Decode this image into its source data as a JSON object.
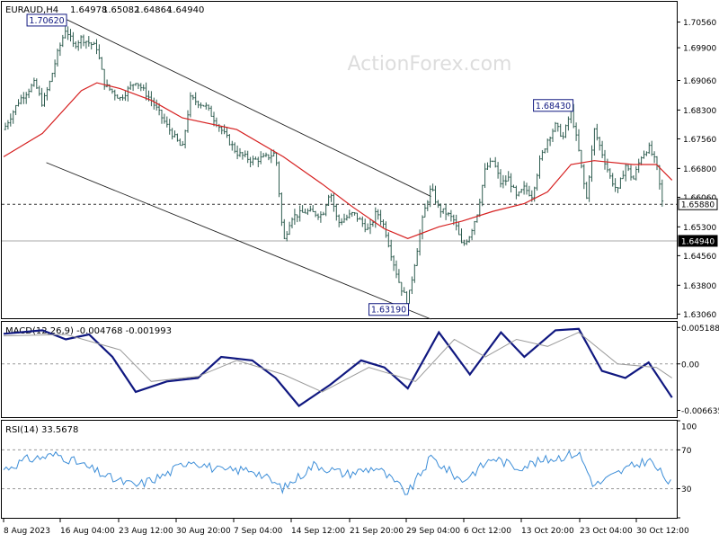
{
  "watermark": "ActionForex.com",
  "colors": {
    "candle": "#2f5d50",
    "ma": "#d62020",
    "macd": "#101880",
    "signal": "#9a9a9a",
    "rsi": "#3d8ed8",
    "label_border": "#101880",
    "grid": "#888888"
  },
  "chart_data": [
    {
      "type": "candlestick",
      "title": "EURAUD,H4",
      "ohlc_header": {
        "open": "1.64978",
        "high": "1.65082",
        "low": "1.64864",
        "close": "1.64940"
      },
      "ylim": [
        1.6293,
        1.7108
      ],
      "y_ticks": [
        "1.70560",
        "1.69900",
        "1.69060",
        "1.68300",
        "1.67560",
        "1.66800",
        "1.66060",
        "1.65300",
        "1.64560",
        "1.63800",
        "1.63060"
      ],
      "price_labels": {
        "current": "1.64940",
        "level": "1.65880"
      },
      "annotations": [
        {
          "text": "1.70620",
          "value": 1.7062,
          "date": "2023-08-16 08:00"
        },
        {
          "text": "1.68430",
          "value": 1.6843,
          "date": "2023-10-20 12:00"
        },
        {
          "text": "1.63190",
          "value": 1.6319,
          "date": "2023-09-29 08:00"
        }
      ],
      "indicator": "moving average (red line)",
      "channel_lines": [
        [
          {
            "date": "2023-08-16 04:00",
            "value": 1.7062
          },
          {
            "date": "2023-10-02 00:00",
            "value": 1.6608
          }
        ],
        [
          {
            "date": "2023-08-13 12:00",
            "value": 1.6695
          },
          {
            "date": "2023-10-02 00:00",
            "value": 1.6293
          }
        ]
      ],
      "close_series": [
        {
          "date": "2023-08-08",
          "close": 1.678
        },
        {
          "date": "2023-08-10",
          "close": 1.6855
        },
        {
          "date": "2023-08-12",
          "close": 1.69
        },
        {
          "date": "2023-08-13",
          "close": 1.6845
        },
        {
          "date": "2023-08-14",
          "close": 1.6905
        },
        {
          "date": "2023-08-15",
          "close": 1.698
        },
        {
          "date": "2023-08-16",
          "close": 1.704
        },
        {
          "date": "2023-08-17",
          "close": 1.6995
        },
        {
          "date": "2023-08-18",
          "close": 1.7015
        },
        {
          "date": "2023-08-20",
          "close": 1.699
        },
        {
          "date": "2023-08-21",
          "close": 1.6895
        },
        {
          "date": "2023-08-23",
          "close": 1.686
        },
        {
          "date": "2023-08-25",
          "close": 1.6905
        },
        {
          "date": "2023-08-27",
          "close": 1.6855
        },
        {
          "date": "2023-08-29",
          "close": 1.679
        },
        {
          "date": "2023-08-31",
          "close": 1.673
        },
        {
          "date": "2023-09-01",
          "close": 1.686
        },
        {
          "date": "2023-09-03",
          "close": 1.684
        },
        {
          "date": "2023-09-05",
          "close": 1.678
        },
        {
          "date": "2023-09-07",
          "close": 1.672
        },
        {
          "date": "2023-09-09",
          "close": 1.67
        },
        {
          "date": "2023-09-11",
          "close": 1.671
        },
        {
          "date": "2023-09-12",
          "close": 1.672
        },
        {
          "date": "2023-09-13",
          "close": 1.649
        },
        {
          "date": "2023-09-14",
          "close": 1.6555
        },
        {
          "date": "2023-09-16",
          "close": 1.657
        },
        {
          "date": "2023-09-18",
          "close": 1.656
        },
        {
          "date": "2023-09-19",
          "close": 1.6625
        },
        {
          "date": "2023-09-20",
          "close": 1.654
        },
        {
          "date": "2023-09-22",
          "close": 1.6565
        },
        {
          "date": "2023-09-24",
          "close": 1.652
        },
        {
          "date": "2023-09-25",
          "close": 1.657
        },
        {
          "date": "2023-09-26",
          "close": 1.653
        },
        {
          "date": "2023-09-27",
          "close": 1.645
        },
        {
          "date": "2023-09-28",
          "close": 1.638
        },
        {
          "date": "2023-09-29",
          "close": 1.6335
        },
        {
          "date": "2023-09-30",
          "close": 1.645
        },
        {
          "date": "2023-10-01",
          "close": 1.656
        },
        {
          "date": "2023-10-02",
          "close": 1.663
        },
        {
          "date": "2023-10-03",
          "close": 1.6575
        },
        {
          "date": "2023-10-04",
          "close": 1.6565
        },
        {
          "date": "2023-10-05",
          "close": 1.6545
        },
        {
          "date": "2023-10-06",
          "close": 1.648
        },
        {
          "date": "2023-10-07",
          "close": 1.651
        },
        {
          "date": "2023-10-08",
          "close": 1.657
        },
        {
          "date": "2023-10-09",
          "close": 1.668
        },
        {
          "date": "2023-10-10",
          "close": 1.67
        },
        {
          "date": "2023-10-11",
          "close": 1.664
        },
        {
          "date": "2023-10-12",
          "close": 1.6655
        },
        {
          "date": "2023-10-13",
          "close": 1.6605
        },
        {
          "date": "2023-10-14",
          "close": 1.663
        },
        {
          "date": "2023-10-15",
          "close": 1.661
        },
        {
          "date": "2023-10-16",
          "close": 1.67
        },
        {
          "date": "2023-10-17",
          "close": 1.6755
        },
        {
          "date": "2023-10-18",
          "close": 1.679
        },
        {
          "date": "2023-10-19",
          "close": 1.676
        },
        {
          "date": "2023-10-20",
          "close": 1.683
        },
        {
          "date": "2023-10-21",
          "close": 1.6725
        },
        {
          "date": "2023-10-22",
          "close": 1.66
        },
        {
          "date": "2023-10-23",
          "close": 1.678
        },
        {
          "date": "2023-10-24",
          "close": 1.672
        },
        {
          "date": "2023-10-25",
          "close": 1.666
        },
        {
          "date": "2023-10-26",
          "close": 1.662
        },
        {
          "date": "2023-10-27",
          "close": 1.669
        },
        {
          "date": "2023-10-28",
          "close": 1.665
        },
        {
          "date": "2023-10-29",
          "close": 1.671
        },
        {
          "date": "2023-10-30",
          "close": 1.6735
        },
        {
          "date": "2023-10-31",
          "close": 1.669
        },
        {
          "date": "2023-11-01",
          "close": 1.656
        },
        {
          "date": "2023-11-02",
          "close": 1.6494
        }
      ],
      "ma_series": [
        {
          "date": "2023-08-08",
          "value": 1.671
        },
        {
          "date": "2023-08-13",
          "value": 1.677
        },
        {
          "date": "2023-08-18",
          "value": 1.688
        },
        {
          "date": "2023-08-20",
          "value": 1.69
        },
        {
          "date": "2023-08-23",
          "value": 1.6885
        },
        {
          "date": "2023-08-27",
          "value": 1.6855
        },
        {
          "date": "2023-08-31",
          "value": 1.681
        },
        {
          "date": "2023-09-07",
          "value": 1.678
        },
        {
          "date": "2023-09-13",
          "value": 1.671
        },
        {
          "date": "2023-09-18",
          "value": 1.664
        },
        {
          "date": "2023-09-22",
          "value": 1.658
        },
        {
          "date": "2023-09-26",
          "value": 1.6525
        },
        {
          "date": "2023-09-29",
          "value": 1.65
        },
        {
          "date": "2023-10-03",
          "value": 1.653
        },
        {
          "date": "2023-10-06",
          "value": 1.6545
        },
        {
          "date": "2023-10-10",
          "value": 1.657
        },
        {
          "date": "2023-10-14",
          "value": 1.659
        },
        {
          "date": "2023-10-17",
          "value": 1.662
        },
        {
          "date": "2023-10-20",
          "value": 1.669
        },
        {
          "date": "2023-10-23",
          "value": 1.67
        },
        {
          "date": "2023-10-28",
          "value": 1.669
        },
        {
          "date": "2023-10-31",
          "value": 1.669
        },
        {
          "date": "2023-11-02",
          "value": 1.665
        }
      ]
    },
    {
      "type": "line",
      "title": "MACD(12,26,9) -0.004768 -0.001993",
      "ylim": [
        -0.0076,
        0.006
      ],
      "y_ticks": [
        "0.005188",
        "0.00",
        "-0.006635"
      ],
      "series": [
        {
          "role": "macd",
          "points": [
            {
              "date": "2023-08-08",
              "value": 0.0043
            },
            {
              "date": "2023-08-13",
              "value": 0.0048
            },
            {
              "date": "2023-08-16",
              "value": 0.0035
            },
            {
              "date": "2023-08-19",
              "value": 0.0042
            },
            {
              "date": "2023-08-22",
              "value": 0.001
            },
            {
              "date": "2023-08-25",
              "value": -0.004
            },
            {
              "date": "2023-08-29",
              "value": -0.0025
            },
            {
              "date": "2023-09-02",
              "value": -0.002
            },
            {
              "date": "2023-09-05",
              "value": 0.001
            },
            {
              "date": "2023-09-09",
              "value": 0.0005
            },
            {
              "date": "2023-09-12",
              "value": -0.002
            },
            {
              "date": "2023-09-15",
              "value": -0.006
            },
            {
              "date": "2023-09-19",
              "value": -0.003
            },
            {
              "date": "2023-09-23",
              "value": 0.0005
            },
            {
              "date": "2023-09-26",
              "value": -0.0005
            },
            {
              "date": "2023-09-29",
              "value": -0.0035
            },
            {
              "date": "2023-10-03",
              "value": 0.0045
            },
            {
              "date": "2023-10-07",
              "value": -0.0015
            },
            {
              "date": "2023-10-11",
              "value": 0.0045
            },
            {
              "date": "2023-10-14",
              "value": 0.001
            },
            {
              "date": "2023-10-18",
              "value": 0.0048
            },
            {
              "date": "2023-10-21",
              "value": 0.005
            },
            {
              "date": "2023-10-24",
              "value": -0.001
            },
            {
              "date": "2023-10-27",
              "value": -0.002
            },
            {
              "date": "2023-10-30",
              "value": 0.0002
            },
            {
              "date": "2023-11-02",
              "value": -0.0048
            }
          ]
        },
        {
          "role": "signal",
          "points": [
            {
              "date": "2023-08-08",
              "value": 0.004
            },
            {
              "date": "2023-08-16",
              "value": 0.0042
            },
            {
              "date": "2023-08-23",
              "value": 0.002
            },
            {
              "date": "2023-08-27",
              "value": -0.0025
            },
            {
              "date": "2023-09-02",
              "value": -0.0018
            },
            {
              "date": "2023-09-07",
              "value": 0.0005
            },
            {
              "date": "2023-09-13",
              "value": -0.0015
            },
            {
              "date": "2023-09-18",
              "value": -0.004
            },
            {
              "date": "2023-09-24",
              "value": -0.0005
            },
            {
              "date": "2023-09-30",
              "value": -0.0025
            },
            {
              "date": "2023-10-05",
              "value": 0.0035
            },
            {
              "date": "2023-10-09",
              "value": 0.001
            },
            {
              "date": "2023-10-13",
              "value": 0.0035
            },
            {
              "date": "2023-10-17",
              "value": 0.0025
            },
            {
              "date": "2023-10-21",
              "value": 0.0045
            },
            {
              "date": "2023-10-26",
              "value": 0.0
            },
            {
              "date": "2023-10-31",
              "value": -0.0005
            },
            {
              "date": "2023-11-02",
              "value": -0.002
            }
          ]
        }
      ]
    },
    {
      "type": "line",
      "title": "RSI(14) 33.5678",
      "ylim": [
        0,
        100
      ],
      "y_ticks": [
        "100",
        "70",
        "30",
        "0"
      ],
      "levels": [
        70,
        30
      ],
      "x_tick_labels": [
        "8 Aug 2023",
        "16 Aug 04:00",
        "23 Aug 12:00",
        "30 Aug 20:00",
        "7 Sep 04:00",
        "14 Sep 12:00",
        "21 Sep 20:00",
        "29 Sep 04:00",
        "6 Oct 12:00",
        "13 Oct 20:00",
        "23 Oct 04:00",
        "30 Oct 12:00"
      ],
      "series": [
        {
          "role": "rsi",
          "points": [
            {
              "date": "2023-08-08",
              "value": 50
            },
            {
              "date": "2023-08-11",
              "value": 60
            },
            {
              "date": "2023-08-15",
              "value": 65
            },
            {
              "date": "2023-08-18",
              "value": 55
            },
            {
              "date": "2023-08-22",
              "value": 40
            },
            {
              "date": "2023-08-25",
              "value": 33
            },
            {
              "date": "2023-08-29",
              "value": 45
            },
            {
              "date": "2023-09-01",
              "value": 60
            },
            {
              "date": "2023-09-05",
              "value": 48
            },
            {
              "date": "2023-09-09",
              "value": 50
            },
            {
              "date": "2023-09-13",
              "value": 30
            },
            {
              "date": "2023-09-17",
              "value": 55
            },
            {
              "date": "2023-09-21",
              "value": 45
            },
            {
              "date": "2023-09-25",
              "value": 52
            },
            {
              "date": "2023-09-29",
              "value": 25
            },
            {
              "date": "2023-10-02",
              "value": 62
            },
            {
              "date": "2023-10-06",
              "value": 38
            },
            {
              "date": "2023-10-10",
              "value": 62
            },
            {
              "date": "2023-10-13",
              "value": 52
            },
            {
              "date": "2023-10-17",
              "value": 60
            },
            {
              "date": "2023-10-21",
              "value": 67
            },
            {
              "date": "2023-10-23",
              "value": 33
            },
            {
              "date": "2023-10-27",
              "value": 50
            },
            {
              "date": "2023-10-30",
              "value": 60
            },
            {
              "date": "2023-11-02",
              "value": 33.5678
            }
          ]
        }
      ]
    }
  ]
}
